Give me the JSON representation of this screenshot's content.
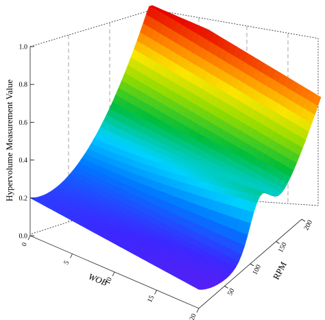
{
  "chart_data": {
    "type": "surface3d",
    "zlabel": "Hypervolume Measurement Value",
    "xlabel": "WOB",
    "ylabel": "RPM",
    "z_ticks": [
      "0.0",
      "0.2",
      "0.4",
      "0.6",
      "0.8",
      "1.0"
    ],
    "x_ticks": [
      "0",
      "5",
      "10",
      "15",
      "20"
    ],
    "y_ticks": [
      "50",
      "100",
      "150",
      "200"
    ],
    "zlim": [
      0,
      1
    ],
    "xlim": [
      0,
      20
    ],
    "ylim": [
      0,
      200
    ],
    "colormap": "rainbow (violet = low, red = high)",
    "corner_values": [
      {
        "WOB": 0,
        "RPM": 0,
        "value": 0.2
      },
      {
        "WOB": 20,
        "RPM": 0,
        "value": 0.1
      },
      {
        "WOB": 0,
        "RPM": 200,
        "value": 1.0
      },
      {
        "WOB": 20,
        "RPM": 200,
        "value": 0.95
      }
    ],
    "ridge": {
      "location": "RPM ≈ 100",
      "peak_value": 0.3
    }
  }
}
